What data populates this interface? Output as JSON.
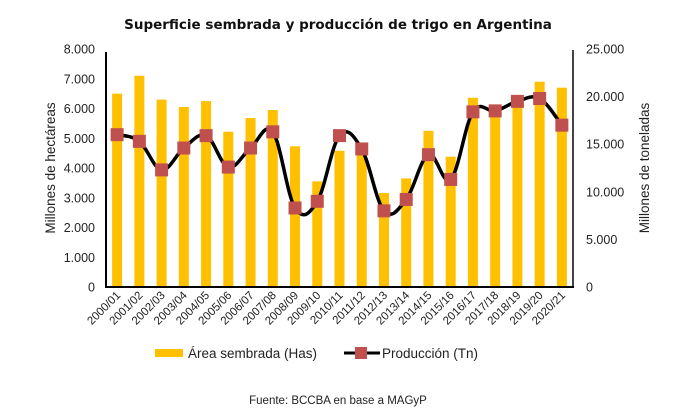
{
  "chart_data": {
    "type": "bar",
    "title": "Superficie sembrada y producción de trigo en Argentina",
    "xlabel": "",
    "ylabel": "Millones de hectáreas",
    "y2label": "Millones de toneladas",
    "ylim": [
      0,
      8000
    ],
    "y2lim": [
      0,
      25000
    ],
    "yticks": [
      "0",
      "1.000",
      "2.000",
      "3.000",
      "4.000",
      "5.000",
      "6.000",
      "7.000",
      "8.000"
    ],
    "y2ticks": [
      "0",
      "5.000",
      "10.000",
      "15.000",
      "20.000",
      "25.000"
    ],
    "grid": false,
    "legend_position": "bottom",
    "categories": [
      "2000/01",
      "2001/02",
      "2002/03",
      "2003/04",
      "2004/05",
      "2005/06",
      "2006/07",
      "2007/08",
      "2008/09",
      "2009/10",
      "2010/11",
      "2011/12",
      "2012/13",
      "2013/14",
      "2014/15",
      "2015/16",
      "2016/17",
      "2017/18",
      "2018/19",
      "2019/20",
      "2020/21"
    ],
    "series": [
      {
        "name": "Área sembrada (Has)",
        "type": "bar",
        "axis": "left",
        "color": "#FFC000",
        "values": [
          6500,
          7100,
          6300,
          6050,
          6250,
          5220,
          5680,
          5950,
          4730,
          3550,
          4580,
          4500,
          3160,
          3650,
          5250,
          4380,
          6360,
          5900,
          6300,
          6900,
          6700
        ]
      },
      {
        "name": "Producción (Tn)",
        "type": "line",
        "axis": "right",
        "color": "#000000",
        "marker_color": "#C0504D",
        "values": [
          16000,
          15300,
          12300,
          14600,
          15900,
          12600,
          14600,
          16300,
          8300,
          9000,
          15900,
          14500,
          8000,
          9200,
          13900,
          11300,
          18400,
          18500,
          19500,
          19800,
          17000
        ]
      }
    ],
    "source": "Fuente: BCCBA en base a MAGyP"
  }
}
